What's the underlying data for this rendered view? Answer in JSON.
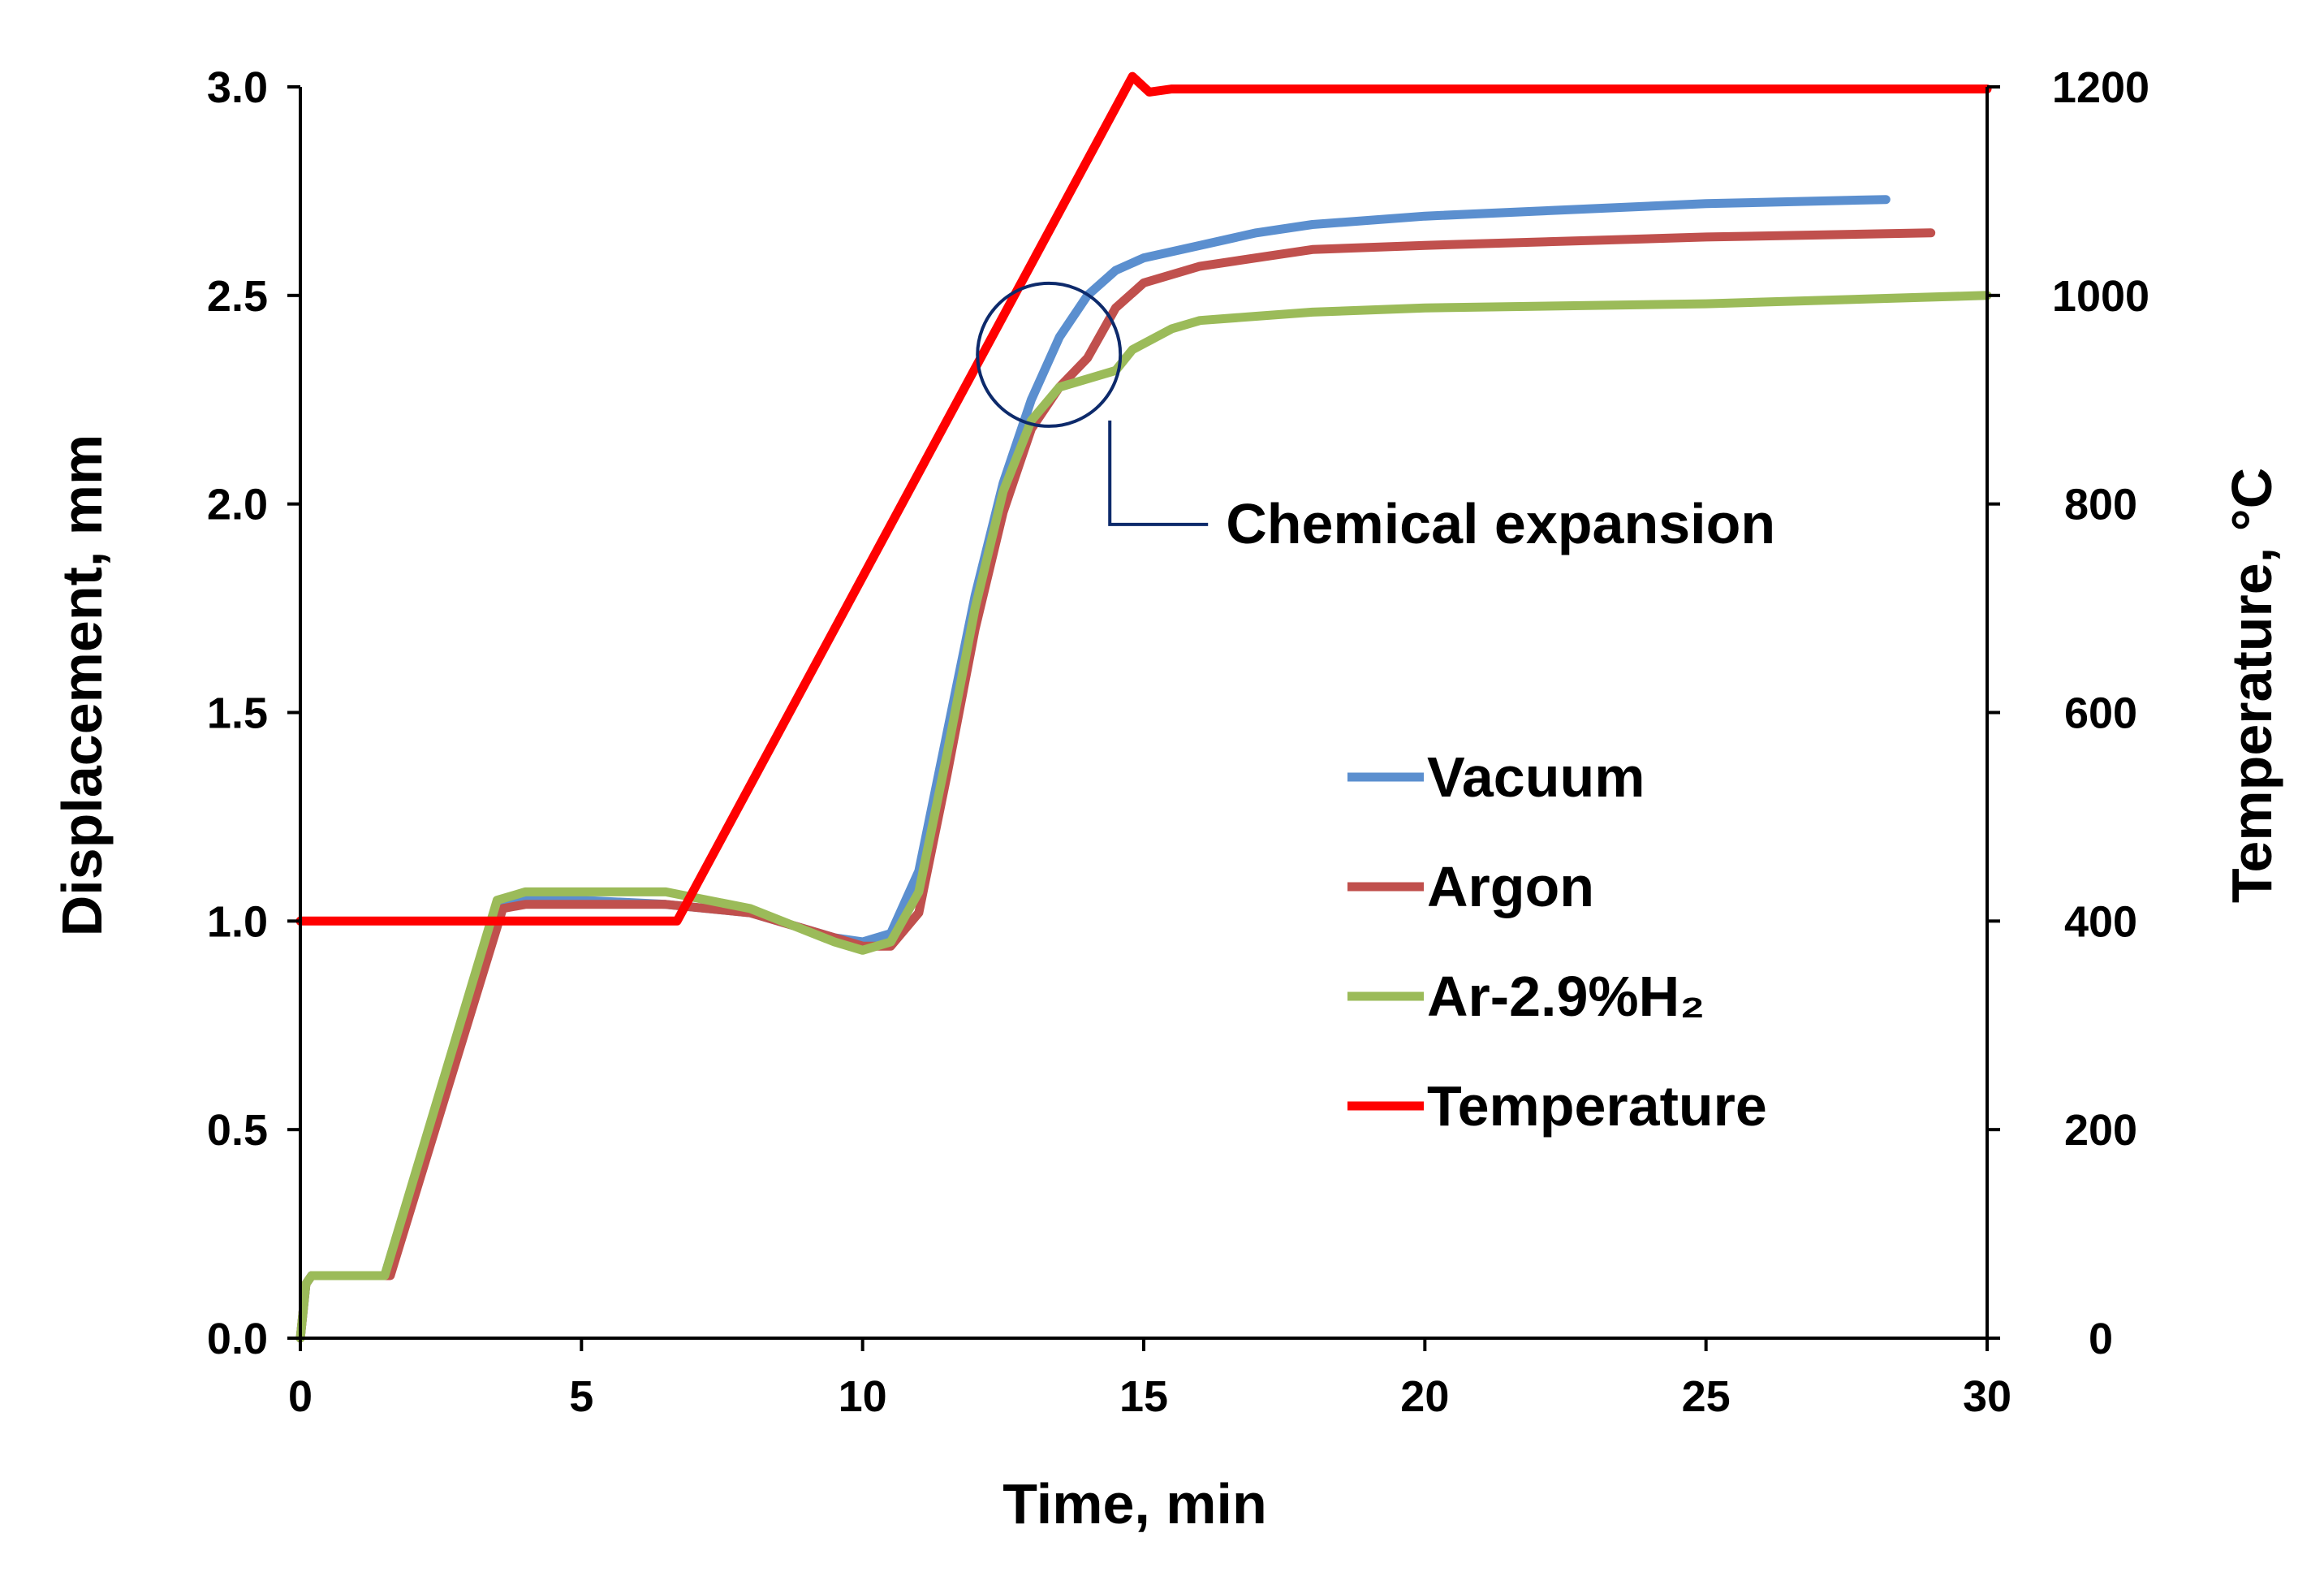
{
  "chart_data": {
    "type": "line",
    "title": "",
    "xlabel": "Time, min",
    "ylabel": "Displacement, mm",
    "y2label": "Temperature, °C",
    "xlim": [
      0,
      30
    ],
    "ylim": [
      0,
      3.0
    ],
    "y2lim": [
      0,
      1200
    ],
    "x_ticks": [
      0,
      5,
      10,
      15,
      20,
      25,
      30
    ],
    "y_ticks": [
      0.0,
      0.5,
      1.0,
      1.5,
      2.0,
      2.5,
      3.0
    ],
    "y_tick_labels": [
      "0.0",
      "0.5",
      "1.0",
      "1.5",
      "2.0",
      "2.5",
      "3.0"
    ],
    "y2_ticks": [
      0,
      200,
      400,
      600,
      800,
      1000,
      1200
    ],
    "grid": false,
    "legend_position": "right-middle",
    "annotation": {
      "text": "Chemical expansion",
      "x": 14.7,
      "y": 2.35
    },
    "series": [
      {
        "name": "Vacuum",
        "axis": "left",
        "color": "#5B8FCF",
        "x": [
          0,
          0.1,
          0.2,
          1.5,
          3.5,
          4,
          5,
          6.5,
          8,
          9.5,
          10,
          10.5,
          11,
          11.5,
          12,
          12.5,
          13,
          13.5,
          14,
          14.5,
          15,
          16,
          17,
          18,
          20,
          25,
          28.2
        ],
        "y": [
          0,
          0.13,
          0.15,
          0.15,
          1.04,
          1.05,
          1.05,
          1.04,
          1.02,
          0.96,
          0.95,
          0.97,
          1.12,
          1.45,
          1.78,
          2.05,
          2.25,
          2.4,
          2.5,
          2.56,
          2.59,
          2.62,
          2.65,
          2.67,
          2.69,
          2.72,
          2.73
        ]
      },
      {
        "name": "Argon",
        "axis": "left",
        "color": "#C0504D",
        "x": [
          0,
          0.1,
          0.2,
          1.6,
          3.6,
          4,
          5,
          6.5,
          8,
          9.5,
          10,
          10.5,
          11,
          11.5,
          12,
          12.5,
          13,
          13.5,
          14,
          14.5,
          15,
          16,
          17,
          18,
          20,
          25,
          29
        ],
        "y": [
          0,
          0.13,
          0.15,
          0.15,
          1.03,
          1.04,
          1.04,
          1.04,
          1.02,
          0.96,
          0.94,
          0.94,
          1.02,
          1.35,
          1.7,
          1.98,
          2.18,
          2.28,
          2.35,
          2.47,
          2.53,
          2.57,
          2.59,
          2.61,
          2.62,
          2.64,
          2.65
        ]
      },
      {
        "name": "Ar-2.9%H₂",
        "axis": "left",
        "color": "#9BBB59",
        "x": [
          0,
          0.1,
          0.2,
          1.5,
          3.5,
          4,
          5,
          6.5,
          8,
          9.5,
          10,
          10.5,
          11,
          11.5,
          12,
          12.5,
          13,
          13.5,
          14,
          14.5,
          14.8,
          15.5,
          16,
          17,
          18,
          20,
          25,
          30
        ],
        "y": [
          0,
          0.13,
          0.15,
          0.15,
          1.05,
          1.07,
          1.07,
          1.07,
          1.03,
          0.95,
          0.93,
          0.95,
          1.07,
          1.4,
          1.75,
          2.03,
          2.2,
          2.28,
          2.3,
          2.32,
          2.37,
          2.42,
          2.44,
          2.45,
          2.46,
          2.47,
          2.48,
          2.5
        ]
      },
      {
        "name": "Temperature",
        "axis": "right",
        "color": "#FF0000",
        "x": [
          0,
          6.7,
          14.7,
          14.8,
          15.1,
          15.5,
          30
        ],
        "y": [
          400,
          400,
          1200,
          1210,
          1195,
          1198,
          1198
        ]
      }
    ]
  }
}
